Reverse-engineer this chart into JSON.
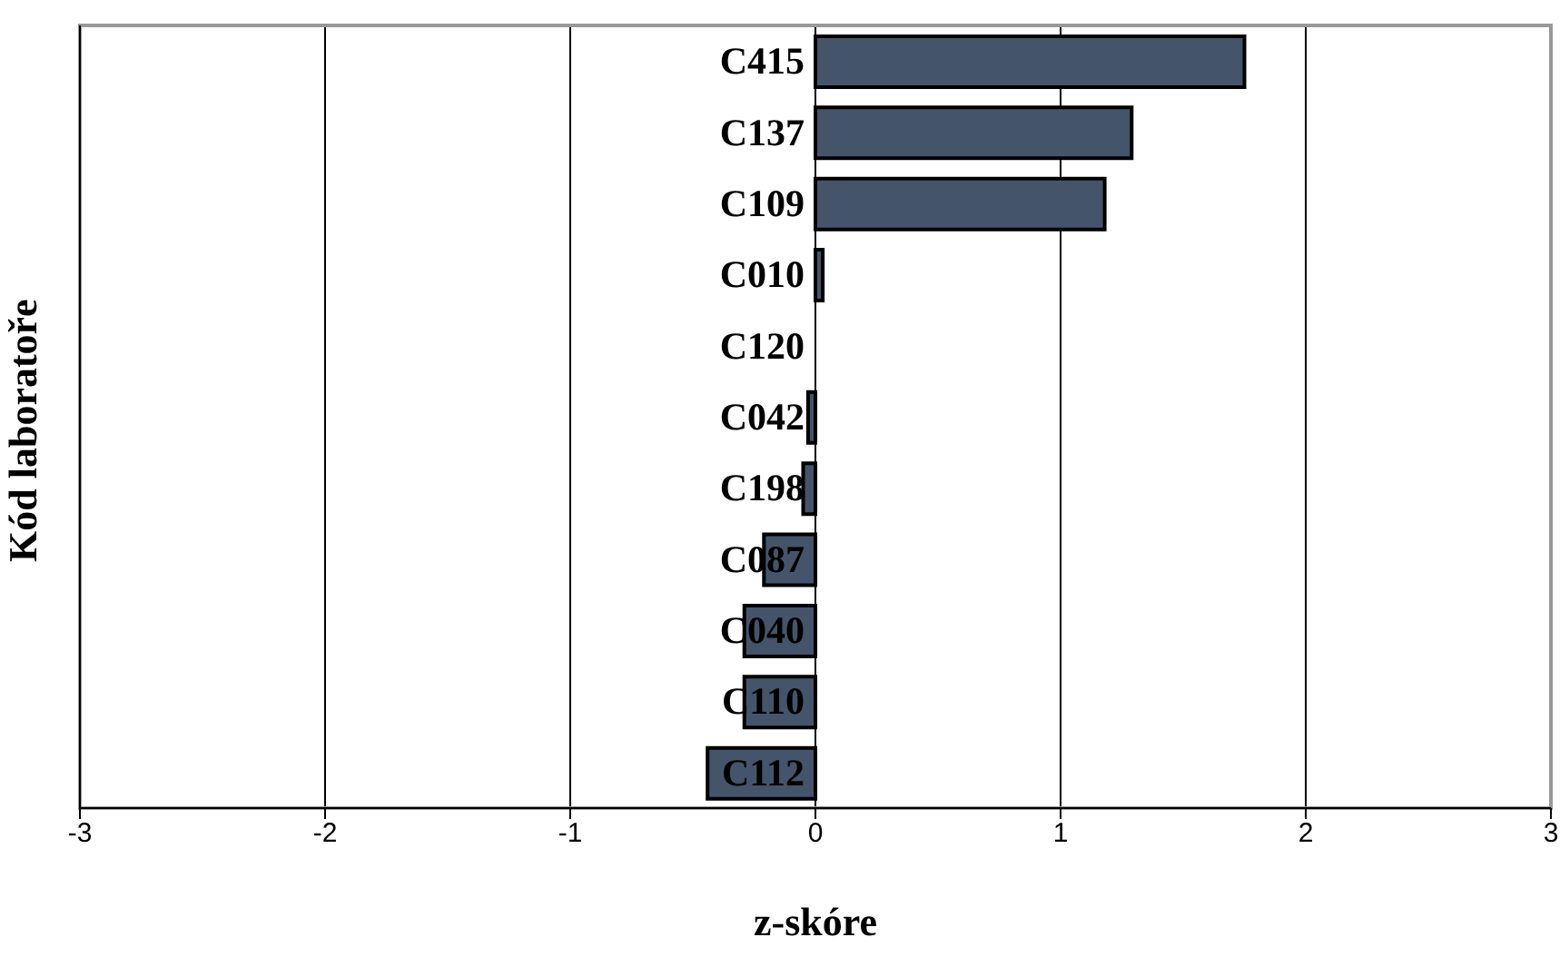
{
  "chart_data": {
    "type": "bar",
    "orientation": "horizontal",
    "xlabel": "z-skóre",
    "ylabel": "Kód laboratoře",
    "categories": [
      "C415",
      "C137",
      "C109",
      "C010",
      "C120",
      "C042",
      "C198",
      "C087",
      "C040",
      "C110",
      "C112"
    ],
    "values": [
      1.75,
      1.29,
      1.18,
      0.03,
      0,
      -0.03,
      -0.05,
      -0.21,
      -0.29,
      -0.29,
      -0.44
    ],
    "color": "#44546a",
    "xlim": [
      -3,
      3
    ],
    "xticks": [
      -3,
      -2,
      -1,
      0,
      1,
      2,
      3
    ],
    "grid": "x",
    "legend": false
  }
}
